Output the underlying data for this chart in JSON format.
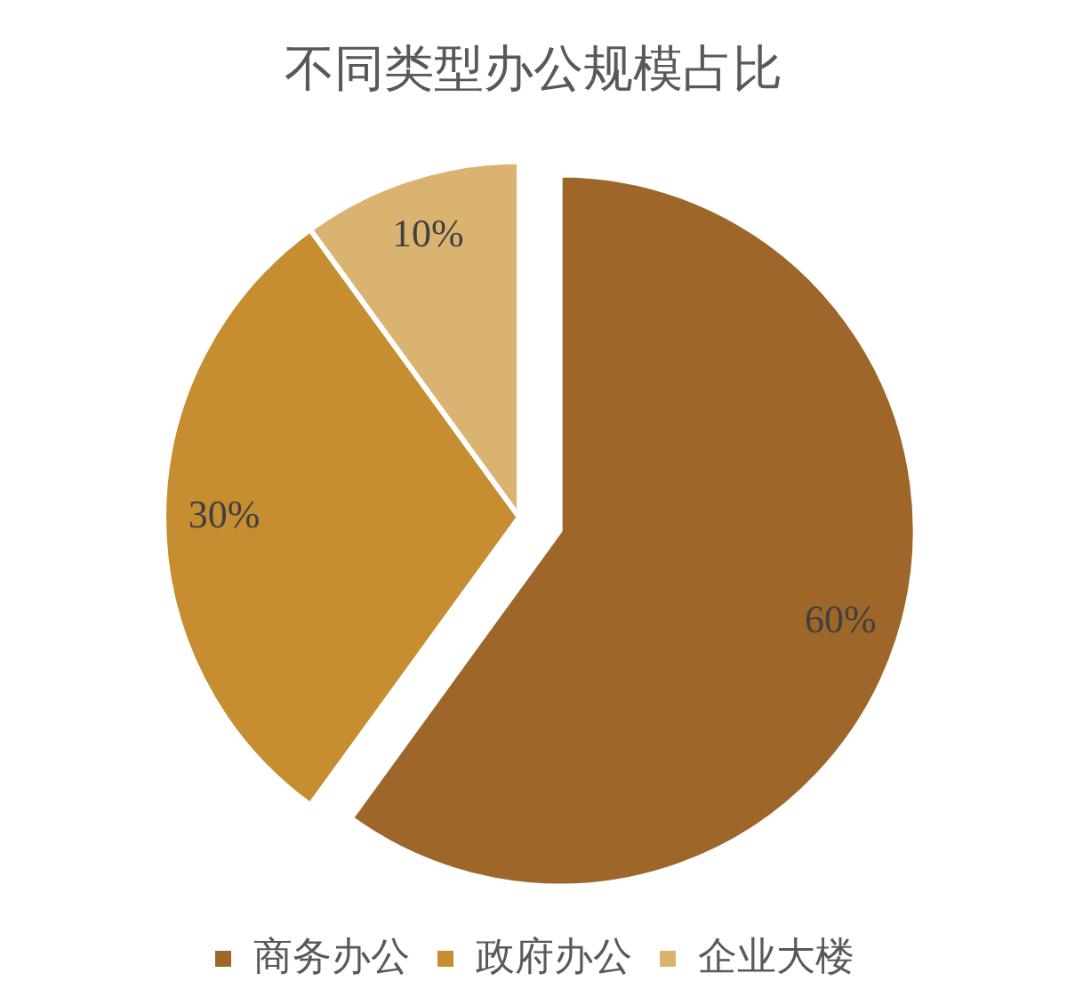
{
  "chart_data": {
    "type": "pie",
    "title": "不同类型办公规模占比",
    "categories": [
      "商务办公",
      "政府办公",
      "企业大楼"
    ],
    "values": [
      60,
      30,
      10
    ],
    "colors": [
      "#9e6628",
      "#c68d31",
      "#dbb370"
    ],
    "value_labels": [
      "60%",
      "30%",
      "10%"
    ],
    "legend": "bottom"
  }
}
